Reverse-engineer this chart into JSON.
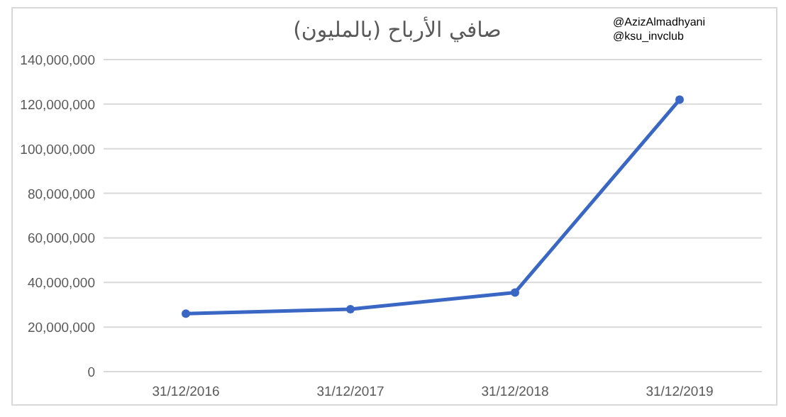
{
  "chart_data": {
    "type": "line",
    "title": "صافي الأرباح (بالمليون)",
    "annotations": [
      "@AzizAlmadhyani",
      "@ksu_invclub"
    ],
    "categories": [
      "31/12/2016",
      "31/12/2017",
      "31/12/2018",
      "31/12/2019"
    ],
    "series": [
      {
        "color": "#3a66c4",
        "values": [
          26000000,
          28000000,
          35500000,
          122000000
        ]
      }
    ],
    "ylim": [
      0,
      140000000
    ],
    "yticks": [
      {
        "value": 0,
        "label": "0"
      },
      {
        "value": 20000000,
        "label": "20,000,000"
      },
      {
        "value": 40000000,
        "label": "40,000,000"
      },
      {
        "value": 60000000,
        "label": "60,000,000"
      },
      {
        "value": 80000000,
        "label": "80,000,000"
      },
      {
        "value": 100000000,
        "label": "100,000,000"
      },
      {
        "value": 120000000,
        "label": "120,000,000"
      },
      {
        "value": 140000000,
        "label": "140,000,000"
      }
    ],
    "grid": "y",
    "marker": "circle",
    "line_style": "solid"
  }
}
